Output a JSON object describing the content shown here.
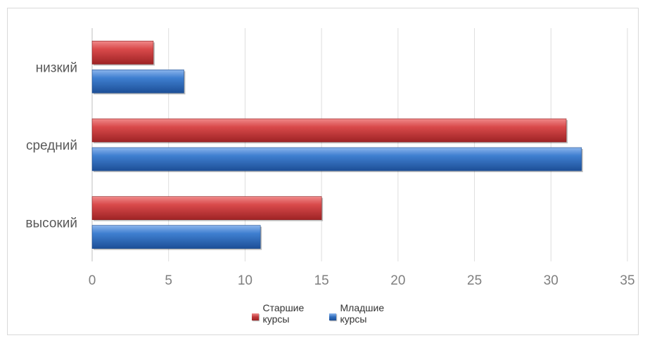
{
  "chart_data": {
    "type": "bar",
    "orientation": "horizontal",
    "categories": [
      "низкий",
      "средний",
      "высокий"
    ],
    "series": [
      {
        "name": "Старшие курсы",
        "values": [
          4,
          31,
          15
        ],
        "color": "#c0393b"
      },
      {
        "name": "Младшие курсы",
        "values": [
          6,
          32,
          11
        ],
        "color": "#2f6dbd"
      }
    ],
    "x_ticks": [
      "0",
      "5",
      "10",
      "15",
      "20",
      "25",
      "30",
      "35"
    ],
    "xlim": [
      0,
      35
    ],
    "grid": true,
    "legend_position": "bottom",
    "title": "",
    "xlabel": "",
    "ylabel": ""
  }
}
